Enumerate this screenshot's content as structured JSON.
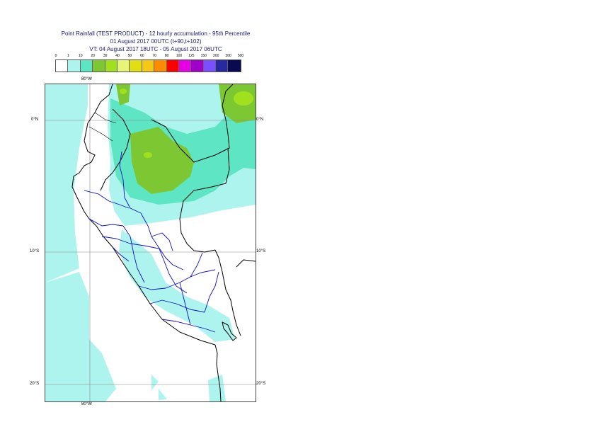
{
  "title": {
    "line1": "Point Rainfall (TEST PRODUCT) - 12 hourly accumulation - 95th Percentile",
    "line2": "01 August 2017 00UTC (t+90,t+102)",
    "line3": "VT: 04 August 2017 18UTC - 05 August 2017 06UTC"
  },
  "legend": {
    "ticks": [
      "0",
      "1",
      "10",
      "20",
      "30",
      "40",
      "50",
      "60",
      "70",
      "80",
      "100",
      "125",
      "150",
      "200",
      "300",
      "500"
    ],
    "colors": [
      "#ffffff",
      "#aef4ee",
      "#5ee6c4",
      "#7dc832",
      "#a0e01e",
      "#e6f578",
      "#dfdf14",
      "#f5c814",
      "#ff8c00",
      "#ff0000",
      "#e600e6",
      "#a000c8",
      "#7850ff",
      "#2828a0",
      "#0a0a50"
    ]
  },
  "axes": {
    "top_lon": "80°W",
    "bottom_lon": "80°W",
    "lat_0_left": "0°N",
    "lat_0_right": "0°N",
    "lat_10_left": "10°S",
    "lat_10_right": "10°S",
    "lat_20_left": "20°S",
    "lat_20_right": "20°S"
  }
}
